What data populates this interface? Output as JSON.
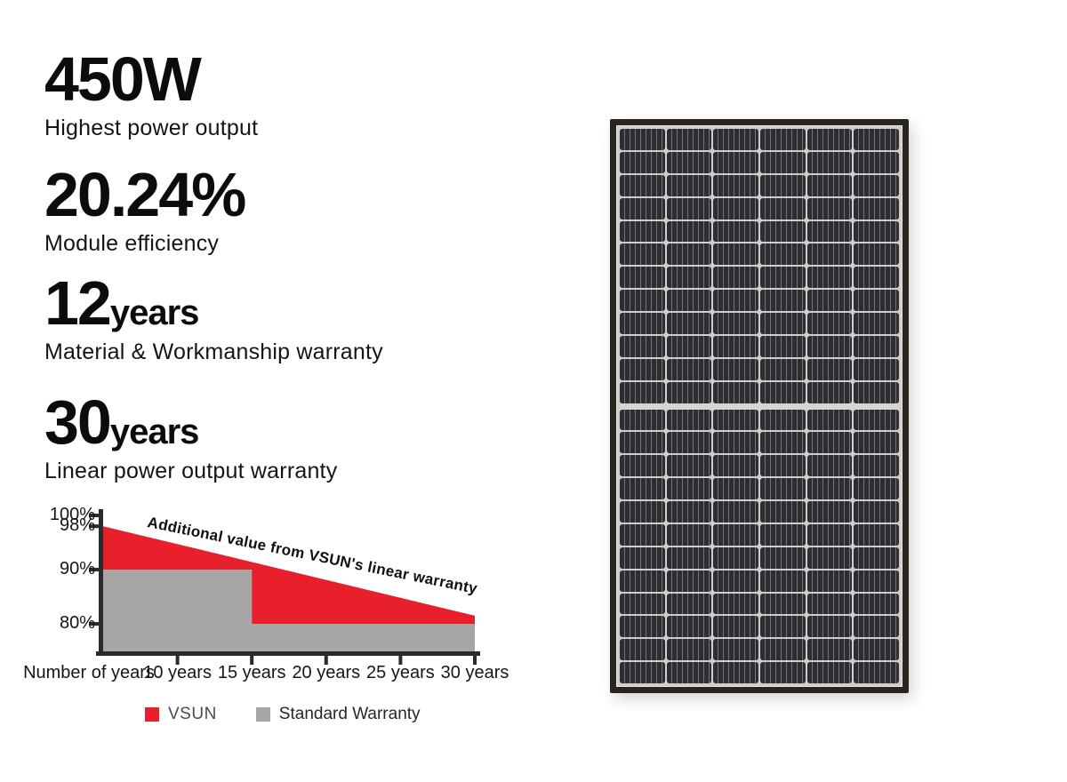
{
  "stats": [
    {
      "value": "450W",
      "unit": "",
      "label": "Highest power output"
    },
    {
      "value": "20.24%",
      "unit": "",
      "label": "Module efficiency"
    },
    {
      "value": "12",
      "unit": "years",
      "label": "Material & Workmanship warranty"
    },
    {
      "value": "30",
      "unit": "years",
      "label": "Linear power output warranty"
    }
  ],
  "chart_data": {
    "type": "area",
    "title": "",
    "x_axis_title": "Number of years",
    "xlim": [
      5,
      30
    ],
    "ylim": [
      75,
      100
    ],
    "grid": false,
    "legend_position": "bottom",
    "annotation": "Additional value from VSUN's linear warranty",
    "x_ticks": [
      {
        "value": 10,
        "label": "10 years"
      },
      {
        "value": 15,
        "label": "15 years"
      },
      {
        "value": 20,
        "label": "20 years"
      },
      {
        "value": 25,
        "label": "25 years"
      },
      {
        "value": 30,
        "label": "30 years"
      }
    ],
    "y_ticks": [
      {
        "value": 100,
        "label": "100%"
      },
      {
        "value": 98,
        "label": "98%"
      },
      {
        "value": 90,
        "label": "90%"
      },
      {
        "value": 80,
        "label": "80%"
      }
    ],
    "series": [
      {
        "name": "VSUN",
        "color": "#e8202b",
        "points": [
          [
            5,
            98
          ],
          [
            30,
            81.5
          ]
        ]
      },
      {
        "name": "Standard Warranty",
        "color": "#a6a6a6",
        "points": [
          [
            5,
            90
          ],
          [
            15,
            90
          ],
          [
            15,
            80
          ],
          [
            30,
            80
          ]
        ]
      }
    ],
    "axis_color": "#2b2b2b"
  },
  "panel": {
    "columns": 6,
    "rows_per_half": 12
  }
}
